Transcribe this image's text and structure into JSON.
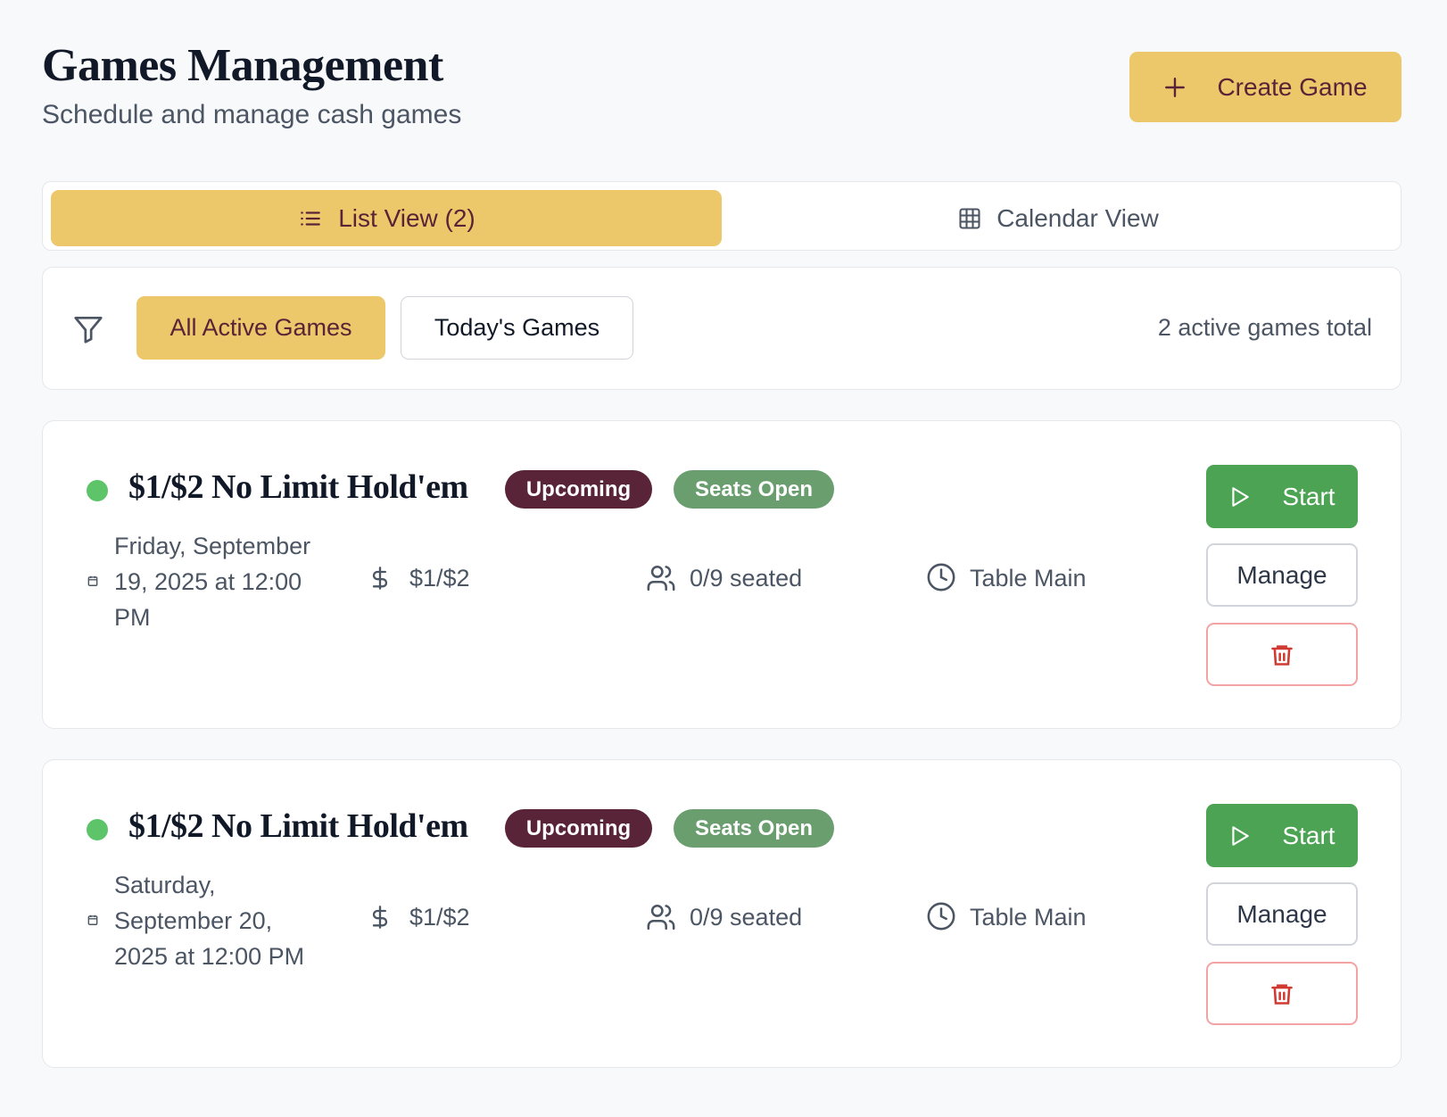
{
  "header": {
    "title": "Games Management",
    "subtitle": "Schedule and manage cash games",
    "create_label": "Create Game"
  },
  "view_tabs": [
    {
      "label": "List View (2)",
      "icon": "list-icon",
      "active": true
    },
    {
      "label": "Calendar View",
      "icon": "grid-icon",
      "active": false
    }
  ],
  "filters": {
    "options": [
      {
        "label": "All Active Games",
        "active": true
      },
      {
        "label": "Today's Games",
        "active": false
      }
    ],
    "summary": "2 active games total"
  },
  "games": [
    {
      "title": "$1/$2 No Limit Hold'em",
      "status": "Upcoming",
      "seats": "Seats Open",
      "date_lines": [
        "Friday, September",
        "19, 2025 at 12:00",
        "PM"
      ],
      "stakes": "$1/$2",
      "seated": "0/9 seated",
      "table": "Table Main"
    },
    {
      "title": "$1/$2 No Limit Hold'em",
      "status": "Upcoming",
      "seats": "Seats Open",
      "date_lines": [
        "Saturday,",
        "September 20,",
        "2025 at 12:00 PM"
      ],
      "stakes": "$1/$2",
      "seated": "0/9 seated",
      "table": "Table Main"
    }
  ],
  "actions": {
    "start": "Start",
    "manage": "Manage"
  },
  "colors": {
    "accent": "#ecc86a",
    "accent_text": "#5a2438",
    "start": "#4da354",
    "upcoming": "#5a2438",
    "seats_open": "#6a9e6f",
    "delete": "#d03a32"
  }
}
